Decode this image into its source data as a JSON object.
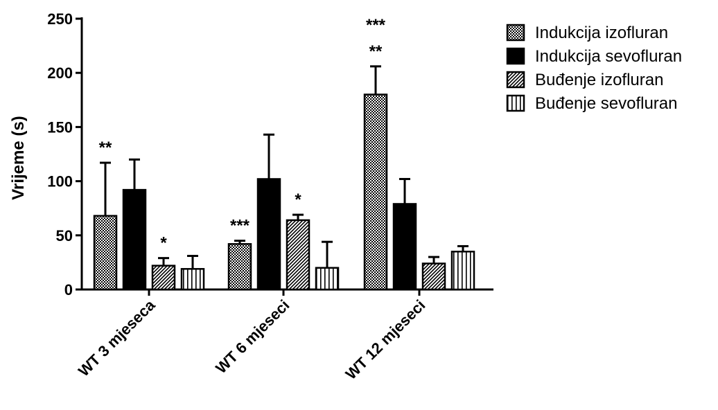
{
  "chart_data": {
    "type": "bar",
    "title": "",
    "xlabel": "",
    "ylabel": "Vrijeme (s)",
    "ylim": [
      0,
      250
    ],
    "yticks": [
      0,
      50,
      100,
      150,
      200,
      250
    ],
    "categories": [
      "WT 3 mjeseca",
      "WT 6 mjeseci",
      "WT 12 mjeseci"
    ],
    "legend_position": "top-right",
    "grid": false,
    "series": [
      {
        "name": "Indukcija izofluran",
        "pattern": "checker",
        "values": [
          68,
          42,
          180
        ],
        "errors": [
          49,
          3,
          26
        ],
        "significance": [
          "**",
          "***",
          "***\n**"
        ]
      },
      {
        "name": "Indukcija sevofluran",
        "pattern": "solid-black",
        "values": [
          92,
          102,
          79
        ],
        "errors": [
          28,
          41,
          23
        ],
        "significance": [
          "",
          "",
          ""
        ]
      },
      {
        "name": "Buđenje izofluran",
        "pattern": "diagonal-hatch",
        "values": [
          22,
          64,
          24
        ],
        "errors": [
          7,
          5,
          6
        ],
        "significance": [
          "*",
          "*",
          ""
        ]
      },
      {
        "name": "Buđenje sevofluran",
        "pattern": "vertical-stripes",
        "values": [
          19,
          20,
          35
        ],
        "errors": [
          12,
          24,
          5
        ],
        "significance": [
          "",
          "",
          ""
        ]
      }
    ]
  }
}
